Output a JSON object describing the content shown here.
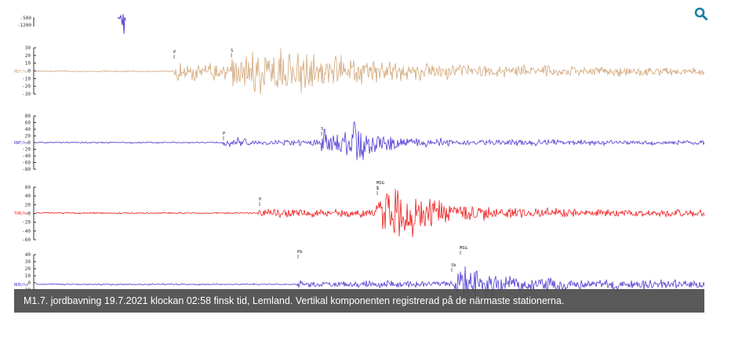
{
  "caption": "M1.7. jordbavning 19.7.2021 klockan 02:58 finsk tid, Lemland. Vertikal komponenten registrerad på de närmaste stationerna.",
  "search": {
    "icon": "search-icon",
    "color": "#1a7fa8"
  },
  "top_trace": {
    "ticks": [
      "-500",
      "-1200"
    ]
  },
  "traces": [
    {
      "color": "#d2a77a",
      "station": "MEF/hz",
      "ticks": [
        "30",
        "20",
        "10",
        "0",
        "-10",
        "-20",
        "-30"
      ],
      "phases": [
        "P",
        "S"
      ],
      "seed": 11
    },
    {
      "color": "#4d3ad0",
      "station": "RNF/hz",
      "ticks": [
        "80",
        "60",
        "40",
        "20",
        "0",
        "-20",
        "-40",
        "-60",
        "-80"
      ],
      "phases": [
        "P",
        "S"
      ],
      "seed": 23
    },
    {
      "color": "#ee1b1b",
      "station": "TUR/hz",
      "ticks": [
        "60",
        "40",
        "20",
        "0",
        "-20",
        "-40",
        "-60"
      ],
      "phases": [
        "P",
        "MSG",
        "S"
      ],
      "seed": 37
    },
    {
      "color": "#4d3ad0",
      "station": "NUR/hz",
      "ticks": [
        "40",
        "30",
        "20",
        "10",
        "0",
        "-10"
      ],
      "phases": [
        "Pb",
        "MSG",
        "Sb"
      ],
      "seed": 53
    }
  ]
}
